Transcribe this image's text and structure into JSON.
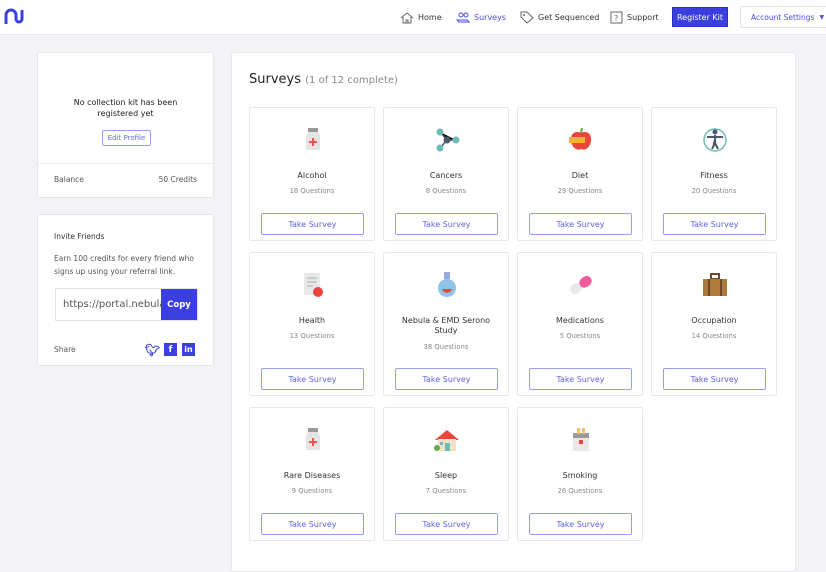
{
  "header": {
    "nav": [
      {
        "label": "Home",
        "icon": "home-icon"
      },
      {
        "label": "Surveys",
        "icon": "surveys-icon",
        "active": true
      },
      {
        "label": "Get Sequenced",
        "icon": "tag-icon"
      },
      {
        "label": "Support",
        "icon": "question-icon"
      }
    ],
    "register_label": "Register Kit",
    "account_label": "Account Settings"
  },
  "profile": {
    "message": "No collection kit has been registered yet",
    "edit_label": "Edit Profile",
    "balance_label": "Balance",
    "balance_value": "50 Credits"
  },
  "invite": {
    "title": "Invite Friends",
    "text": "Earn 100 credits for every friend who signs up using your referral link.",
    "link": "https://portal.nebula.org",
    "copy_label": "Copy",
    "share_label": "Share"
  },
  "surveys": {
    "title": "Surveys",
    "progress": "(1 of 12 complete)",
    "button_label": "Take Survey",
    "items": [
      {
        "name": "Alcohol",
        "questions": "18 Questions",
        "icon": "bottle-icon"
      },
      {
        "name": "Cancers",
        "questions": "8 Questions",
        "icon": "molecule-icon"
      },
      {
        "name": "Diet",
        "questions": "29 Questions",
        "icon": "apple-icon"
      },
      {
        "name": "Fitness",
        "questions": "20 Questions",
        "icon": "fitness-icon"
      },
      {
        "name": "Health",
        "questions": "13 Questions",
        "icon": "health-record-icon"
      },
      {
        "name": "Nebula & EMD Serono Study",
        "questions": "38 Questions",
        "icon": "flask-icon"
      },
      {
        "name": "Medications",
        "questions": "5 Questions",
        "icon": "pill-icon"
      },
      {
        "name": "Occupation",
        "questions": "14 Questions",
        "icon": "briefcase-icon"
      },
      {
        "name": "Rare Diseases",
        "questions": "9 Questions",
        "icon": "bottle-icon"
      },
      {
        "name": "Sleep",
        "questions": "7 Questions",
        "icon": "house-icon"
      },
      {
        "name": "Smoking",
        "questions": "26 Questions",
        "icon": "cigarette-pack-icon"
      }
    ]
  }
}
